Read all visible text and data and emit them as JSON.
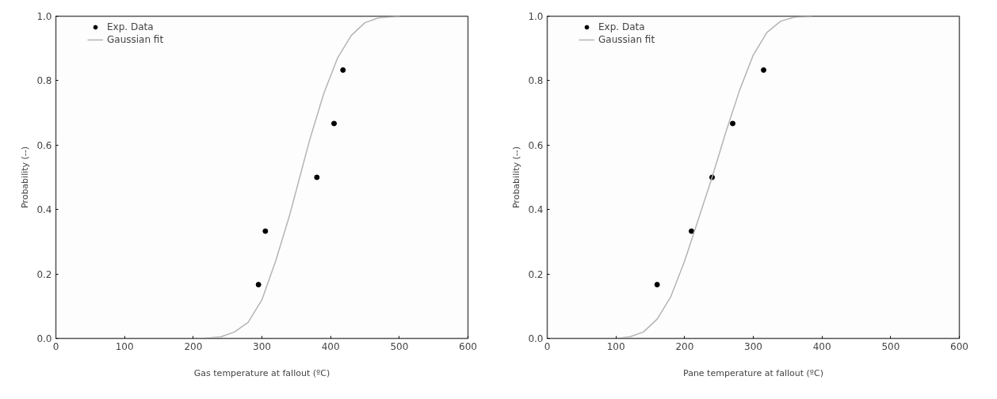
{
  "chart_data": [
    {
      "type": "scatter",
      "xlabel": "Gas temperature at fallout (ºC)",
      "ylabel": "Probability (--)",
      "xlim": [
        0,
        600
      ],
      "ylim": [
        0,
        1
      ],
      "xticks": [
        0,
        100,
        200,
        300,
        400,
        500,
        600
      ],
      "yticks": [
        {
          "value": 0,
          "label": "0.0"
        },
        {
          "value": 0.2,
          "label": "0.2"
        },
        {
          "value": 0.4,
          "label": "0.4"
        },
        {
          "value": 0.6,
          "label": "0.6"
        },
        {
          "value": 0.8,
          "label": "0.8"
        },
        {
          "value": 1,
          "label": "1.0"
        }
      ],
      "grid": false,
      "legend": "top left",
      "series": [
        {
          "name": "Exp. Data",
          "marker": "circle",
          "color": "#000000",
          "x": [
            295,
            305,
            380,
            405,
            418
          ],
          "values": [
            0.167,
            0.333,
            0.5,
            0.667,
            0.833
          ]
        },
        {
          "name": "Gaussian fit",
          "type": "line",
          "color": "#b4b4b4",
          "x": [
            215,
            240,
            260,
            280,
            300,
            320,
            340,
            355,
            370,
            390,
            410,
            430,
            450,
            470,
            500
          ],
          "values": [
            0,
            0.005,
            0.02,
            0.05,
            0.12,
            0.24,
            0.38,
            0.5,
            0.62,
            0.76,
            0.87,
            0.94,
            0.98,
            0.995,
            1.0
          ]
        }
      ]
    },
    {
      "type": "scatter",
      "xlabel": "Pane temperature at fallout (ºC)",
      "ylabel": "Probability (--)",
      "xlim": [
        0,
        600
      ],
      "ylim": [
        0,
        1
      ],
      "xticks": [
        0,
        100,
        200,
        300,
        400,
        500,
        600
      ],
      "yticks": [
        {
          "value": 0,
          "label": "0.0"
        },
        {
          "value": 0.2,
          "label": "0.2"
        },
        {
          "value": 0.4,
          "label": "0.4"
        },
        {
          "value": 0.6,
          "label": "0.6"
        },
        {
          "value": 0.8,
          "label": "0.8"
        },
        {
          "value": 1,
          "label": "1.0"
        }
      ],
      "grid": false,
      "legend": "top left",
      "series": [
        {
          "name": "Exp. Data",
          "marker": "circle",
          "color": "#000000",
          "x": [
            160,
            210,
            240,
            270,
            315
          ],
          "values": [
            0.167,
            0.333,
            0.5,
            0.667,
            0.833
          ]
        },
        {
          "name": "Gaussian fit",
          "type": "line",
          "color": "#b4b4b4",
          "x": [
            100,
            120,
            140,
            160,
            180,
            200,
            220,
            240,
            260,
            280,
            300,
            320,
            340,
            360,
            385
          ],
          "values": [
            0,
            0.005,
            0.02,
            0.06,
            0.13,
            0.24,
            0.37,
            0.5,
            0.64,
            0.77,
            0.88,
            0.95,
            0.985,
            0.997,
            1.0
          ]
        }
      ]
    }
  ]
}
